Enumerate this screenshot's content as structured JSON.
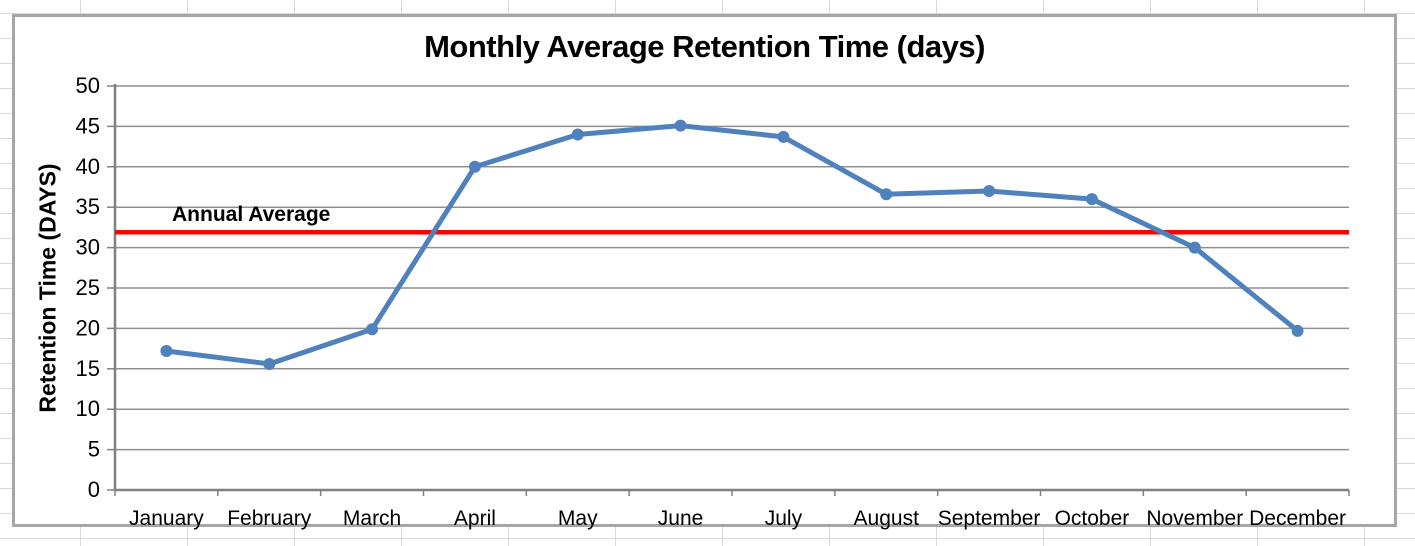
{
  "chart_data": {
    "type": "line",
    "title": "Monthly Average Retention Time (days)",
    "xlabel": "",
    "ylabel": "Retention Time (DAYS)",
    "categories": [
      "January",
      "February",
      "March",
      "April",
      "May",
      "June",
      "July",
      "August",
      "September",
      "October",
      "November",
      "December"
    ],
    "series": [
      {
        "name": "Monthly Average Retention Time",
        "color": "#4F81BD",
        "values": [
          17.2,
          15.6,
          19.9,
          40.0,
          44.0,
          45.1,
          43.7,
          36.6,
          37.0,
          36.0,
          30.0,
          19.7
        ]
      }
    ],
    "annotation": {
      "label": "Annual Average",
      "value": 31.9,
      "color": "#FF0000"
    },
    "ylim": [
      0,
      50
    ],
    "ytick_step": 5,
    "grid": "horizontal",
    "legend": "none"
  },
  "colors": {
    "gridline": "#909090",
    "axis": "#808080",
    "chart_border": "#A6A6A6",
    "cell_grid": "#D9D9D9",
    "text": "#000000",
    "chart_background": "#FFFFFF"
  }
}
